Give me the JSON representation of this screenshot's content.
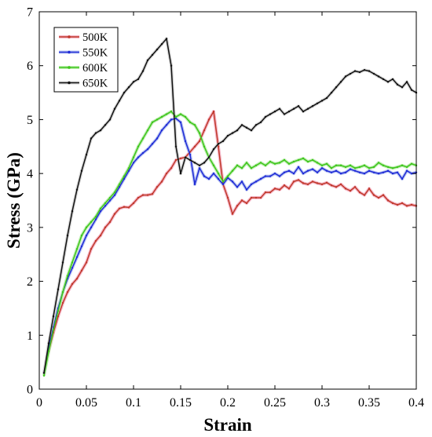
{
  "chart_data": {
    "type": "line",
    "xlabel": "Strain",
    "ylabel": "Stress (GPa)",
    "xlim": [
      0,
      0.4
    ],
    "ylim": [
      0,
      7
    ],
    "xticks": [
      "0",
      "0.05",
      "0.1",
      "0.15",
      "0.2",
      "0.25",
      "0.3",
      "0.35",
      "0.4"
    ],
    "yticks": [
      "0",
      "1",
      "2",
      "3",
      "4",
      "5",
      "6",
      "7"
    ],
    "legend_position": "top-left",
    "grid": false,
    "series": [
      {
        "name": "500K",
        "color": "#c0392b",
        "shadow": "#f5b7c8",
        "x": [
          0.005,
          0.01,
          0.015,
          0.02,
          0.025,
          0.03,
          0.035,
          0.04,
          0.045,
          0.05,
          0.055,
          0.06,
          0.065,
          0.07,
          0.075,
          0.08,
          0.085,
          0.09,
          0.095,
          0.1,
          0.105,
          0.11,
          0.115,
          0.12,
          0.125,
          0.13,
          0.135,
          0.14,
          0.145,
          0.15,
          0.155,
          0.16,
          0.165,
          0.17,
          0.175,
          0.18,
          0.185,
          0.19,
          0.195,
          0.2,
          0.205,
          0.21,
          0.215,
          0.22,
          0.225,
          0.23,
          0.235,
          0.24,
          0.245,
          0.25,
          0.255,
          0.26,
          0.265,
          0.27,
          0.275,
          0.28,
          0.285,
          0.29,
          0.295,
          0.3,
          0.305,
          0.31,
          0.315,
          0.32,
          0.325,
          0.33,
          0.335,
          0.34,
          0.345,
          0.35,
          0.355,
          0.36,
          0.365,
          0.37,
          0.375,
          0.38,
          0.385,
          0.39,
          0.395,
          0.4
        ],
        "y": [
          0.3,
          0.7,
          1.05,
          1.35,
          1.6,
          1.8,
          1.95,
          2.05,
          2.2,
          2.35,
          2.6,
          2.75,
          2.85,
          3.0,
          3.1,
          3.25,
          3.35,
          3.38,
          3.37,
          3.45,
          3.55,
          3.6,
          3.6,
          3.62,
          3.75,
          3.85,
          4.0,
          4.1,
          4.25,
          4.28,
          4.3,
          4.4,
          4.5,
          4.6,
          4.8,
          5.0,
          5.15,
          4.5,
          3.8,
          3.55,
          3.25,
          3.4,
          3.5,
          3.45,
          3.55,
          3.55,
          3.55,
          3.65,
          3.65,
          3.72,
          3.7,
          3.78,
          3.72,
          3.85,
          3.88,
          3.82,
          3.8,
          3.85,
          3.82,
          3.8,
          3.83,
          3.78,
          3.75,
          3.8,
          3.72,
          3.68,
          3.75,
          3.65,
          3.6,
          3.72,
          3.6,
          3.55,
          3.6,
          3.5,
          3.45,
          3.42,
          3.45,
          3.4,
          3.42,
          3.4
        ]
      },
      {
        "name": "550K",
        "color": "#1f2bd6",
        "shadow": "#b9c4f2",
        "x": [
          0.005,
          0.01,
          0.015,
          0.02,
          0.025,
          0.03,
          0.035,
          0.04,
          0.045,
          0.05,
          0.055,
          0.06,
          0.065,
          0.07,
          0.075,
          0.08,
          0.085,
          0.09,
          0.095,
          0.1,
          0.105,
          0.11,
          0.115,
          0.12,
          0.125,
          0.13,
          0.135,
          0.14,
          0.145,
          0.15,
          0.155,
          0.16,
          0.165,
          0.17,
          0.175,
          0.18,
          0.185,
          0.19,
          0.195,
          0.2,
          0.205,
          0.21,
          0.215,
          0.22,
          0.225,
          0.23,
          0.235,
          0.24,
          0.245,
          0.25,
          0.255,
          0.26,
          0.265,
          0.27,
          0.275,
          0.28,
          0.285,
          0.29,
          0.295,
          0.3,
          0.305,
          0.31,
          0.315,
          0.32,
          0.325,
          0.33,
          0.335,
          0.34,
          0.345,
          0.35,
          0.355,
          0.36,
          0.365,
          0.37,
          0.375,
          0.38,
          0.385,
          0.39,
          0.395,
          0.4
        ],
        "y": [
          0.3,
          0.75,
          1.15,
          1.5,
          1.8,
          2.05,
          2.25,
          2.45,
          2.65,
          2.85,
          3.0,
          3.15,
          3.3,
          3.4,
          3.5,
          3.6,
          3.75,
          3.9,
          4.05,
          4.2,
          4.3,
          4.38,
          4.45,
          4.55,
          4.65,
          4.8,
          4.9,
          5.0,
          5.02,
          4.95,
          4.6,
          4.35,
          3.8,
          4.1,
          3.95,
          3.9,
          4.0,
          3.9,
          3.8,
          3.92,
          3.85,
          3.75,
          3.85,
          3.7,
          3.8,
          3.85,
          3.9,
          3.95,
          3.95,
          4.0,
          3.95,
          4.02,
          4.05,
          4.0,
          4.12,
          4.0,
          4.05,
          4.08,
          4.02,
          4.1,
          4.05,
          4.02,
          4.05,
          4.0,
          4.02,
          4.08,
          4.05,
          4.02,
          4.0,
          4.05,
          4.02,
          4.0,
          4.02,
          4.05,
          4.0,
          4.02,
          3.9,
          4.05,
          4.0,
          4.02
        ]
      },
      {
        "name": "600K",
        "color": "#3ec51c",
        "shadow": "#bfeeb2",
        "x": [
          0.005,
          0.01,
          0.015,
          0.02,
          0.025,
          0.03,
          0.035,
          0.04,
          0.045,
          0.05,
          0.055,
          0.06,
          0.065,
          0.07,
          0.075,
          0.08,
          0.085,
          0.09,
          0.095,
          0.1,
          0.105,
          0.11,
          0.115,
          0.12,
          0.125,
          0.13,
          0.135,
          0.14,
          0.145,
          0.15,
          0.155,
          0.16,
          0.165,
          0.17,
          0.175,
          0.18,
          0.185,
          0.19,
          0.195,
          0.2,
          0.205,
          0.21,
          0.215,
          0.22,
          0.225,
          0.23,
          0.235,
          0.24,
          0.245,
          0.25,
          0.255,
          0.26,
          0.265,
          0.27,
          0.275,
          0.28,
          0.285,
          0.29,
          0.295,
          0.3,
          0.305,
          0.31,
          0.315,
          0.32,
          0.325,
          0.33,
          0.335,
          0.34,
          0.345,
          0.35,
          0.355,
          0.36,
          0.365,
          0.37,
          0.375,
          0.38,
          0.385,
          0.39,
          0.395,
          0.4
        ],
        "y": [
          0.25,
          0.7,
          1.1,
          1.45,
          1.8,
          2.1,
          2.35,
          2.6,
          2.85,
          3.0,
          3.1,
          3.2,
          3.35,
          3.45,
          3.55,
          3.65,
          3.8,
          3.95,
          4.1,
          4.3,
          4.5,
          4.65,
          4.8,
          4.95,
          5.0,
          5.05,
          5.1,
          5.15,
          5.05,
          5.1,
          5.05,
          4.95,
          4.9,
          4.75,
          4.5,
          4.3,
          4.15,
          4.0,
          3.85,
          3.95,
          4.05,
          4.15,
          4.1,
          4.2,
          4.1,
          4.15,
          4.2,
          4.15,
          4.22,
          4.18,
          4.2,
          4.25,
          4.18,
          4.22,
          4.25,
          4.28,
          4.22,
          4.25,
          4.2,
          4.15,
          4.18,
          4.1,
          4.15,
          4.15,
          4.12,
          4.15,
          4.1,
          4.12,
          4.15,
          4.1,
          4.12,
          4.2,
          4.15,
          4.12,
          4.1,
          4.12,
          4.15,
          4.12,
          4.18,
          4.15
        ]
      },
      {
        "name": "650K",
        "color": "#111111",
        "shadow": "#d6d6d6",
        "x": [
          0.005,
          0.01,
          0.015,
          0.02,
          0.025,
          0.03,
          0.035,
          0.04,
          0.045,
          0.05,
          0.055,
          0.06,
          0.065,
          0.07,
          0.075,
          0.08,
          0.085,
          0.09,
          0.095,
          0.1,
          0.105,
          0.11,
          0.115,
          0.12,
          0.125,
          0.13,
          0.135,
          0.14,
          0.145,
          0.15,
          0.155,
          0.16,
          0.165,
          0.17,
          0.175,
          0.18,
          0.185,
          0.19,
          0.195,
          0.2,
          0.205,
          0.21,
          0.215,
          0.22,
          0.225,
          0.23,
          0.235,
          0.24,
          0.245,
          0.25,
          0.255,
          0.26,
          0.265,
          0.27,
          0.275,
          0.28,
          0.285,
          0.29,
          0.295,
          0.3,
          0.305,
          0.31,
          0.315,
          0.32,
          0.325,
          0.33,
          0.335,
          0.34,
          0.345,
          0.35,
          0.355,
          0.36,
          0.365,
          0.37,
          0.375,
          0.38,
          0.385,
          0.39,
          0.395,
          0.4
        ],
        "y": [
          0.3,
          0.85,
          1.35,
          1.85,
          2.35,
          2.85,
          3.3,
          3.7,
          4.05,
          4.35,
          4.65,
          4.75,
          4.8,
          4.9,
          5.0,
          5.2,
          5.35,
          5.5,
          5.6,
          5.7,
          5.75,
          5.9,
          6.1,
          6.2,
          6.3,
          6.4,
          6.5,
          6.0,
          4.5,
          4.0,
          4.3,
          4.25,
          4.2,
          4.15,
          4.2,
          4.3,
          4.45,
          4.55,
          4.6,
          4.7,
          4.75,
          4.8,
          4.9,
          4.85,
          4.8,
          4.9,
          4.95,
          5.05,
          5.1,
          5.15,
          5.2,
          5.1,
          5.15,
          5.2,
          5.25,
          5.15,
          5.2,
          5.25,
          5.3,
          5.35,
          5.4,
          5.5,
          5.6,
          5.7,
          5.8,
          5.85,
          5.9,
          5.88,
          5.92,
          5.9,
          5.85,
          5.8,
          5.75,
          5.7,
          5.75,
          5.65,
          5.6,
          5.7,
          5.55,
          5.5
        ]
      }
    ]
  }
}
